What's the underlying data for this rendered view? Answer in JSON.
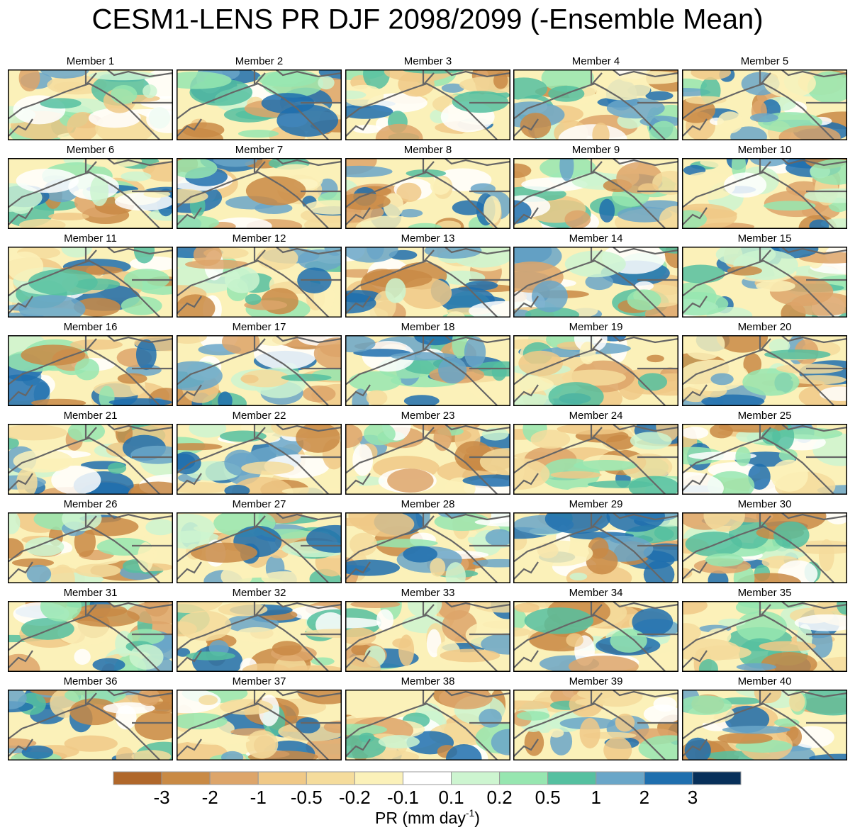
{
  "title": "CESM1-LENS PR DJF 2098/2099 (-Ensemble Mean)",
  "panels": [
    "Member 1",
    "Member 2",
    "Member 3",
    "Member 4",
    "Member 5",
    "Member 6",
    "Member 7",
    "Member 8",
    "Member 9",
    "Member 10",
    "Member 11",
    "Member 12",
    "Member 13",
    "Member 14",
    "Member 15",
    "Member 16",
    "Member 17",
    "Member 18",
    "Member 19",
    "Member 20",
    "Member 21",
    "Member 22",
    "Member 23",
    "Member 24",
    "Member 25",
    "Member 26",
    "Member 27",
    "Member 28",
    "Member 29",
    "Member 30",
    "Member 31",
    "Member 32",
    "Member 33",
    "Member 34",
    "Member 35",
    "Member 36",
    "Member 37",
    "Member 38",
    "Member 39",
    "Member 40"
  ],
  "colorbar": {
    "colors": [
      "#b0672a",
      "#c98a45",
      "#dda56a",
      "#f0c987",
      "#f5dc9c",
      "#fbf1b9",
      "#ffffff",
      "#cdf5d0",
      "#97e6b0",
      "#55c0a0",
      "#6aa6c8",
      "#1f6fae",
      "#08305a"
    ],
    "ticks": [
      -3,
      -2,
      -1,
      -0.5,
      -0.2,
      -0.1,
      0.1,
      0.2,
      0.5,
      1,
      2,
      3
    ],
    "label": "PR (mm day",
    "label_exponent": "-1",
    "label_close": ")"
  }
}
